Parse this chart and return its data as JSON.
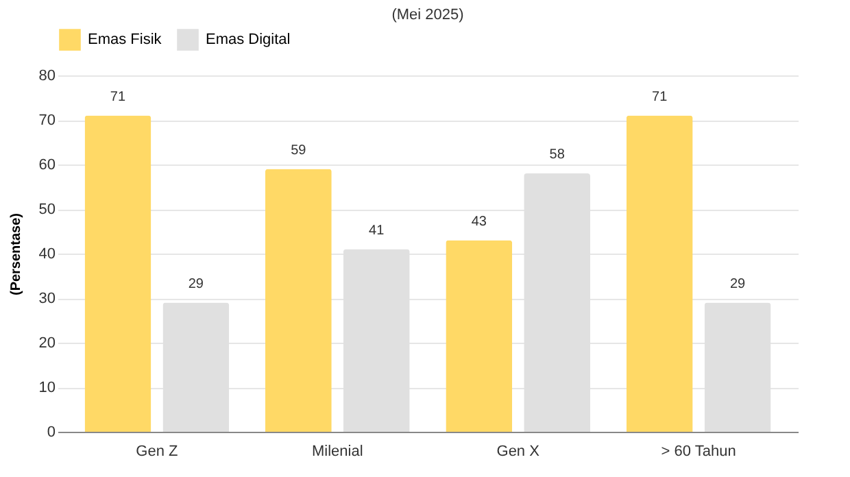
{
  "chart_data": {
    "type": "bar",
    "title": "(Mei 2025)",
    "ylabel": "(Persentase)",
    "categories": [
      "Gen Z",
      "Milenial",
      "Gen X",
      "> 60 Tahun"
    ],
    "series": [
      {
        "name": "Emas Fisik",
        "color": "#ffd966",
        "values": [
          71,
          59,
          43,
          71
        ]
      },
      {
        "name": "Emas Digital",
        "color": "#e0e0e0",
        "values": [
          29,
          41,
          58,
          29
        ]
      }
    ],
    "ylim": [
      0,
      80
    ],
    "yticks": [
      0,
      10,
      20,
      30,
      40,
      50,
      60,
      70,
      80
    ],
    "grid": "y",
    "legend": "top",
    "data_labels": true
  }
}
